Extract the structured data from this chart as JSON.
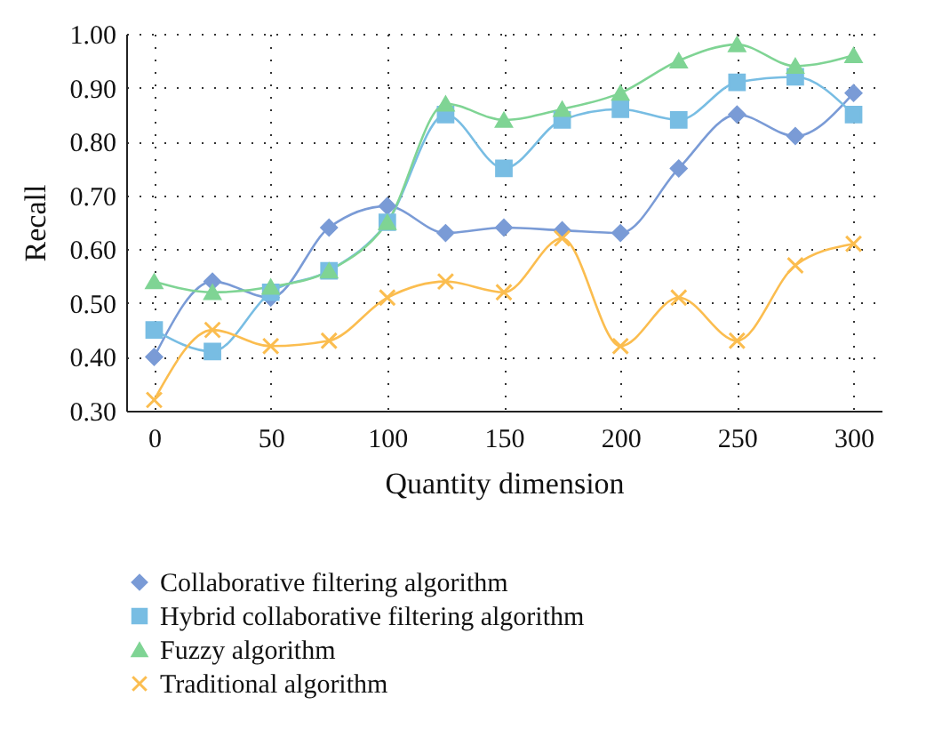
{
  "chart_data": {
    "type": "line",
    "xlabel": "Quantity dimension",
    "ylabel": "Recall",
    "x": [
      0,
      25,
      50,
      75,
      100,
      125,
      150,
      175,
      200,
      225,
      250,
      275,
      300
    ],
    "series": [
      {
        "name": "Collaborative filtering algorithm",
        "color": "#7a9bd6",
        "marker": "diamond",
        "values": [
          0.4,
          0.54,
          0.51,
          0.64,
          0.68,
          0.63,
          0.64,
          0.635,
          0.63,
          0.75,
          0.85,
          0.81,
          0.89
        ]
      },
      {
        "name": "Hybrid collaborative filtering algorithm",
        "color": "#78bde3",
        "marker": "square",
        "values": [
          0.45,
          0.41,
          0.52,
          0.56,
          0.65,
          0.85,
          0.75,
          0.84,
          0.86,
          0.84,
          0.91,
          0.92,
          0.85
        ]
      },
      {
        "name": "Fuzzy algorithm",
        "color": "#7fd494",
        "marker": "triangle",
        "values": [
          0.54,
          0.52,
          0.53,
          0.56,
          0.65,
          0.87,
          0.84,
          0.86,
          0.89,
          0.95,
          0.98,
          0.94,
          0.96
        ]
      },
      {
        "name": "Traditional algorithm",
        "color": "#fbbd4f",
        "marker": "cross",
        "values": [
          0.32,
          0.45,
          0.42,
          0.43,
          0.51,
          0.54,
          0.52,
          0.62,
          0.42,
          0.51,
          0.43,
          0.57,
          0.61
        ]
      }
    ],
    "xlim": [
      -12,
      312
    ],
    "xticks": [
      0,
      50,
      100,
      150,
      200,
      250,
      300
    ],
    "ylim": [
      0.3,
      1.0
    ],
    "yticks": [
      {
        "value": 0.3,
        "label": "0.30"
      },
      {
        "value": 0.4,
        "label": "0.40"
      },
      {
        "value": 0.5,
        "label": "0.50"
      },
      {
        "value": 0.6,
        "label": "0.60"
      },
      {
        "value": 0.7,
        "label": "0.70"
      },
      {
        "value": 0.8,
        "label": "0.80"
      },
      {
        "value": 0.9,
        "label": "0.90"
      },
      {
        "value": 1.0,
        "label": "1.00"
      }
    ],
    "grid": true,
    "line_style": "solid",
    "legend": "bottom"
  }
}
